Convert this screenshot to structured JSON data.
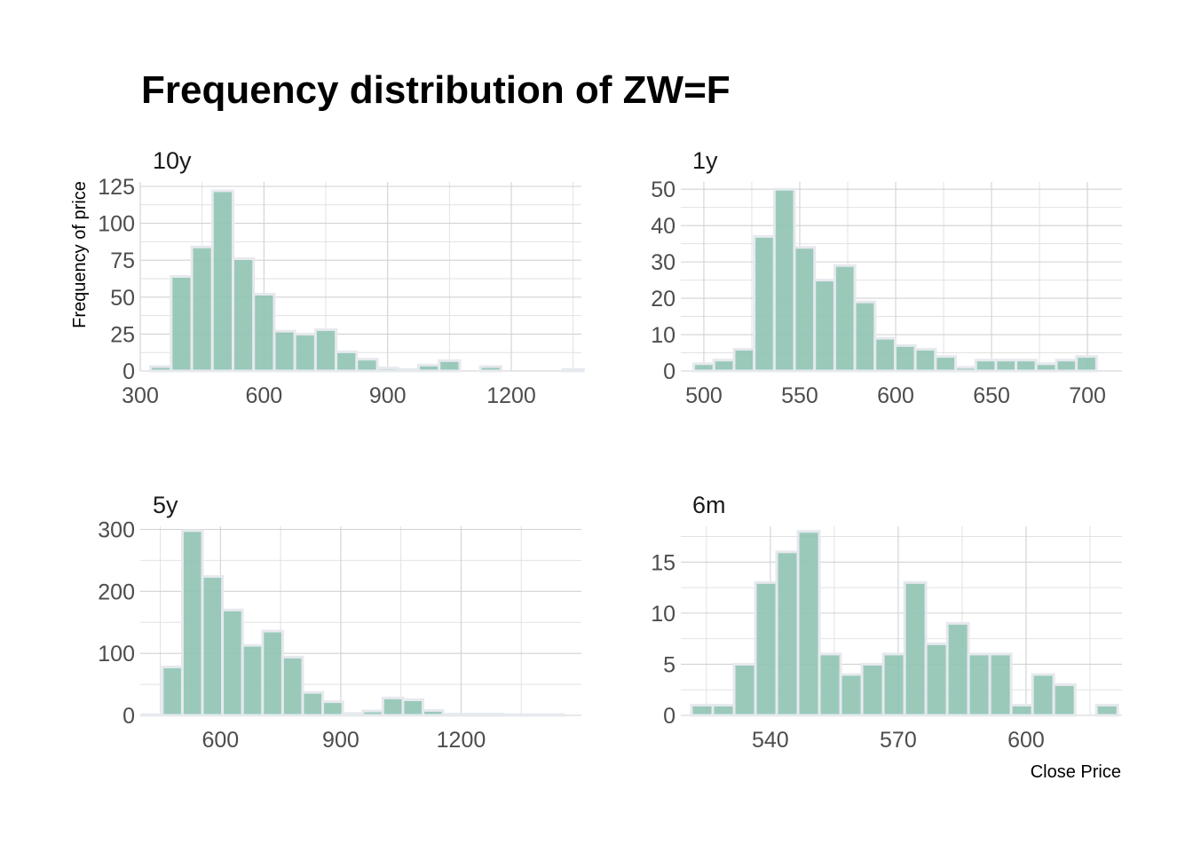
{
  "chart_data": {
    "type": "bar",
    "title": "Frequency distribution of ZW=F",
    "ylabel": "Frequency of price",
    "xlabel": "Close Price",
    "grid": true,
    "panels": [
      {
        "name": "10y",
        "xlim": [
          300,
          1370
        ],
        "ylim": [
          0,
          128
        ],
        "xticks": [
          300,
          600,
          900,
          1200
        ],
        "xticks_minor": [
          450,
          750,
          1050,
          1350
        ],
        "yticks": [
          0,
          25,
          50,
          75,
          100,
          125
        ],
        "yticks_minor": [
          12.5,
          37.5,
          62.5,
          87.5,
          112.5
        ],
        "x": [
          350,
          400,
          450,
          500,
          550,
          600,
          650,
          700,
          750,
          800,
          850,
          900,
          950,
          1000,
          1050,
          1100,
          1150,
          1200,
          1250,
          1300,
          1350
        ],
        "values": [
          3,
          64,
          84,
          122,
          76,
          52,
          27,
          25,
          28,
          13,
          8,
          2,
          1,
          4,
          7,
          0,
          3,
          0,
          0,
          0,
          1
        ],
        "bin_width": 50
      },
      {
        "name": "1y",
        "xlim": [
          488,
          718
        ],
        "ylim": [
          0,
          52
        ],
        "xticks": [
          500,
          550,
          600,
          650,
          700
        ],
        "xticks_minor": [
          525,
          575,
          625,
          675
        ],
        "yticks": [
          0,
          10,
          20,
          30,
          40,
          50
        ],
        "yticks_minor": [
          5,
          15,
          25,
          35,
          45
        ],
        "x": [
          500,
          510.5,
          521,
          531.5,
          542,
          552.5,
          563,
          573.5,
          584,
          594.5,
          605,
          615.5,
          626,
          636.5,
          647,
          657.5,
          668,
          678.5,
          689,
          699.5
        ],
        "values": [
          2,
          3,
          6,
          37,
          50,
          34,
          25,
          29,
          19,
          9,
          7,
          6,
          4,
          1,
          3,
          3,
          3,
          2,
          3,
          4
        ],
        "bin_width": 10.5
      },
      {
        "name": "5y",
        "xlim": [
          400,
          1500
        ],
        "ylim": [
          0,
          305
        ],
        "xticks": [
          600,
          900,
          1200
        ],
        "xticks_minor": [
          450,
          750,
          1050,
          1350
        ],
        "yticks": [
          0,
          100,
          200,
          300
        ],
        "yticks_minor": [
          50,
          150,
          250
        ],
        "x": [
          430,
          480,
          530,
          580,
          630,
          680,
          730,
          780,
          830,
          880,
          930,
          980,
          1030,
          1080,
          1130,
          1180,
          1230,
          1280,
          1330,
          1380,
          1430
        ],
        "values": [
          1,
          78,
          298,
          224,
          170,
          113,
          136,
          94,
          37,
          22,
          3,
          7,
          28,
          25,
          8,
          2,
          2,
          2,
          1,
          1,
          1
        ],
        "bin_width": 50
      },
      {
        "name": "6m",
        "xlim": [
          519,
          622.5
        ],
        "ylim": [
          0,
          18.5
        ],
        "xticks": [
          540,
          570,
          600
        ],
        "xticks_minor": [
          525,
          555,
          585,
          615
        ],
        "yticks": [
          0,
          5,
          10,
          15
        ],
        "yticks_minor": [
          2.5,
          7.5,
          12.5,
          17.5
        ],
        "x": [
          524,
          529,
          534,
          539,
          544,
          549,
          554,
          559,
          564,
          569,
          574,
          579,
          584,
          589,
          594,
          599,
          604,
          609,
          614,
          619
        ],
        "values": [
          1,
          1,
          5,
          13,
          16,
          18,
          6,
          4,
          5,
          6,
          13,
          7,
          9,
          6,
          6,
          1,
          4,
          3,
          0,
          1
        ],
        "bin_width": 5
      }
    ]
  }
}
